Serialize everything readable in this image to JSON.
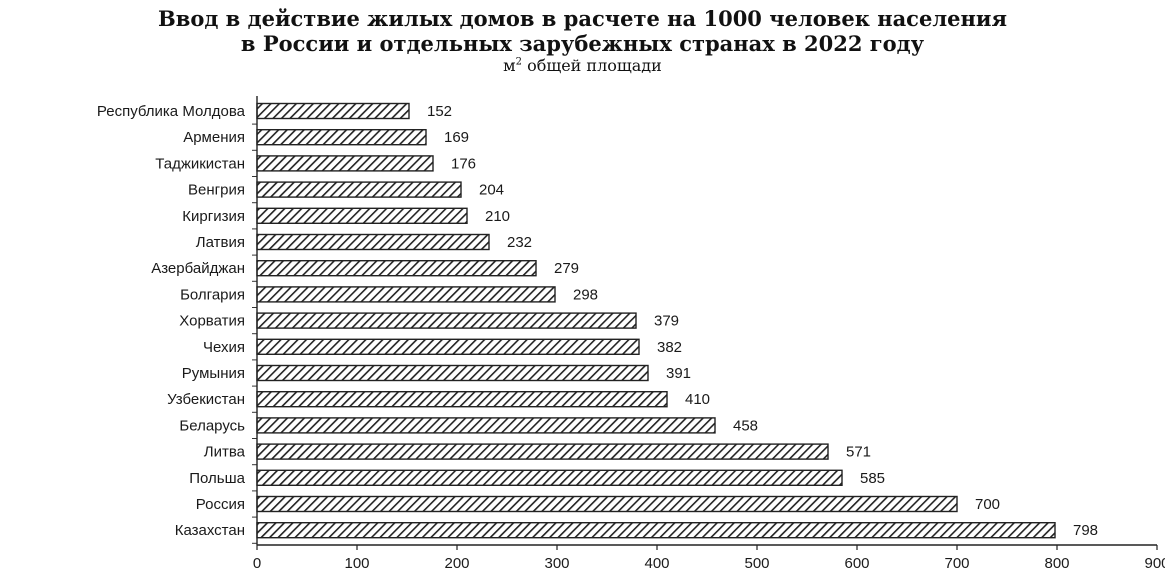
{
  "chart_data": {
    "type": "bar",
    "orientation": "horizontal",
    "title_line1": "Ввод в действие жилых домов в расчете на 1000 человек населения",
    "title_line2": "в России и отдельных зарубежных странах в 2022 году",
    "subtitle_pre": "м",
    "subtitle_sup": "2",
    "subtitle_post": " общей площади",
    "categories": [
      "Республика Молдова",
      "Армения",
      "Таджикистан",
      "Венгрия",
      "Киргизия",
      "Латвия",
      "Азербайджан",
      "Болгария",
      "Хорватия",
      "Чехия",
      "Румыния",
      "Узбекистан",
      "Беларусь",
      "Литва",
      "Польша",
      "Россия",
      "Казахстан"
    ],
    "values": [
      152,
      169,
      176,
      204,
      210,
      232,
      279,
      298,
      379,
      382,
      391,
      410,
      458,
      571,
      585,
      700,
      798
    ],
    "xlim": [
      0,
      900
    ],
    "xticks": [
      "0",
      "100",
      "200",
      "300",
      "400",
      "500",
      "600",
      "700",
      "800",
      "900"
    ],
    "bar_pattern": "diagonal-hatch",
    "bar_color": "#222222",
    "grid": false,
    "legend": "none"
  }
}
